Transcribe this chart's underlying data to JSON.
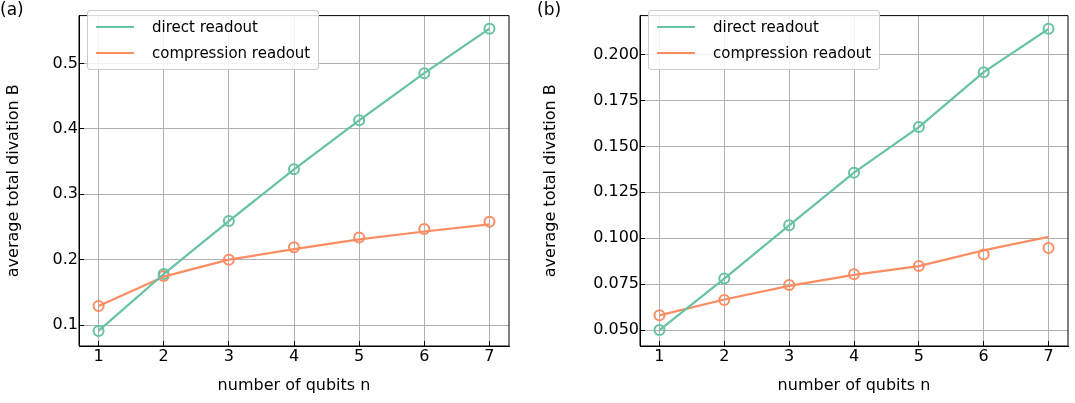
{
  "chart_data": [
    {
      "type": "line",
      "title": "(a)",
      "xlabel": "number of qubits n",
      "ylabel": "average total divation B",
      "x": [
        1,
        2,
        3,
        4,
        5,
        6,
        7
      ],
      "xlim": [
        0.7,
        7.3
      ],
      "ylim": [
        0.068,
        0.573
      ],
      "xticks": [
        1,
        2,
        3,
        4,
        5,
        6,
        7
      ],
      "yticks": [
        0.1,
        0.2,
        0.3,
        0.4,
        0.5
      ],
      "grid": true,
      "legend": "top left",
      "series": [
        {
          "name": "direct readout",
          "type": "line",
          "marker": "none",
          "color": "#66c2a5",
          "values": [
            0.091,
            0.178,
            0.259,
            0.338,
            0.413,
            0.485,
            0.553
          ]
        },
        {
          "name": "compression readout",
          "type": "line",
          "marker": "none",
          "color": "#fc8d62",
          "values": [
            0.129,
            0.174,
            0.2,
            0.216,
            0.231,
            0.243,
            0.254
          ]
        },
        {
          "type": "scatter",
          "marker": "circle",
          "color": "#66c2a5",
          "values": [
            0.091,
            0.178,
            0.259,
            0.338,
            0.413,
            0.485,
            0.553
          ]
        },
        {
          "type": "scatter",
          "marker": "circle",
          "color": "#fc8d62",
          "values": [
            0.129,
            0.175,
            0.2,
            0.219,
            0.234,
            0.247,
            0.258
          ]
        }
      ]
    },
    {
      "type": "line",
      "title": "(b)",
      "xlabel": "number of qubits n",
      "ylabel": "average total divation B",
      "x": [
        1,
        2,
        3,
        4,
        5,
        6,
        7
      ],
      "xlim": [
        0.7,
        7.3
      ],
      "ylim": [
        0.0413,
        0.2212
      ],
      "xticks": [
        1,
        2,
        3,
        4,
        5,
        6,
        7
      ],
      "yticks": [
        {
          "value": 0.05,
          "label": "0.050"
        },
        {
          "value": 0.075,
          "label": "0.075"
        },
        {
          "value": 0.1,
          "label": "0.100"
        },
        {
          "value": 0.125,
          "label": "0.125"
        },
        {
          "value": 0.15,
          "label": "0.150"
        },
        {
          "value": 0.175,
          "label": "0.175"
        },
        {
          "value": 0.2,
          "label": "0.200"
        }
      ],
      "grid": true,
      "legend": "top left",
      "series": [
        {
          "name": "direct readout",
          "type": "line",
          "marker": "none",
          "color": "#66c2a5",
          "values": [
            0.05,
            0.078,
            0.107,
            0.1357,
            0.1605,
            0.1904,
            0.214
          ]
        },
        {
          "name": "compression readout",
          "type": "line",
          "marker": "none",
          "color": "#fc8d62",
          "values": [
            0.058,
            0.0666,
            0.074,
            0.08,
            0.0848,
            0.0934,
            0.1007
          ]
        },
        {
          "type": "scatter",
          "marker": "circle",
          "color": "#66c2a5",
          "values": [
            0.05,
            0.078,
            0.107,
            0.1357,
            0.1605,
            0.1904,
            0.214
          ]
        },
        {
          "type": "scatter",
          "marker": "circle",
          "color": "#fc8d62",
          "values": [
            0.058,
            0.0663,
            0.0745,
            0.0804,
            0.0848,
            0.0911,
            0.0946
          ]
        }
      ]
    }
  ]
}
